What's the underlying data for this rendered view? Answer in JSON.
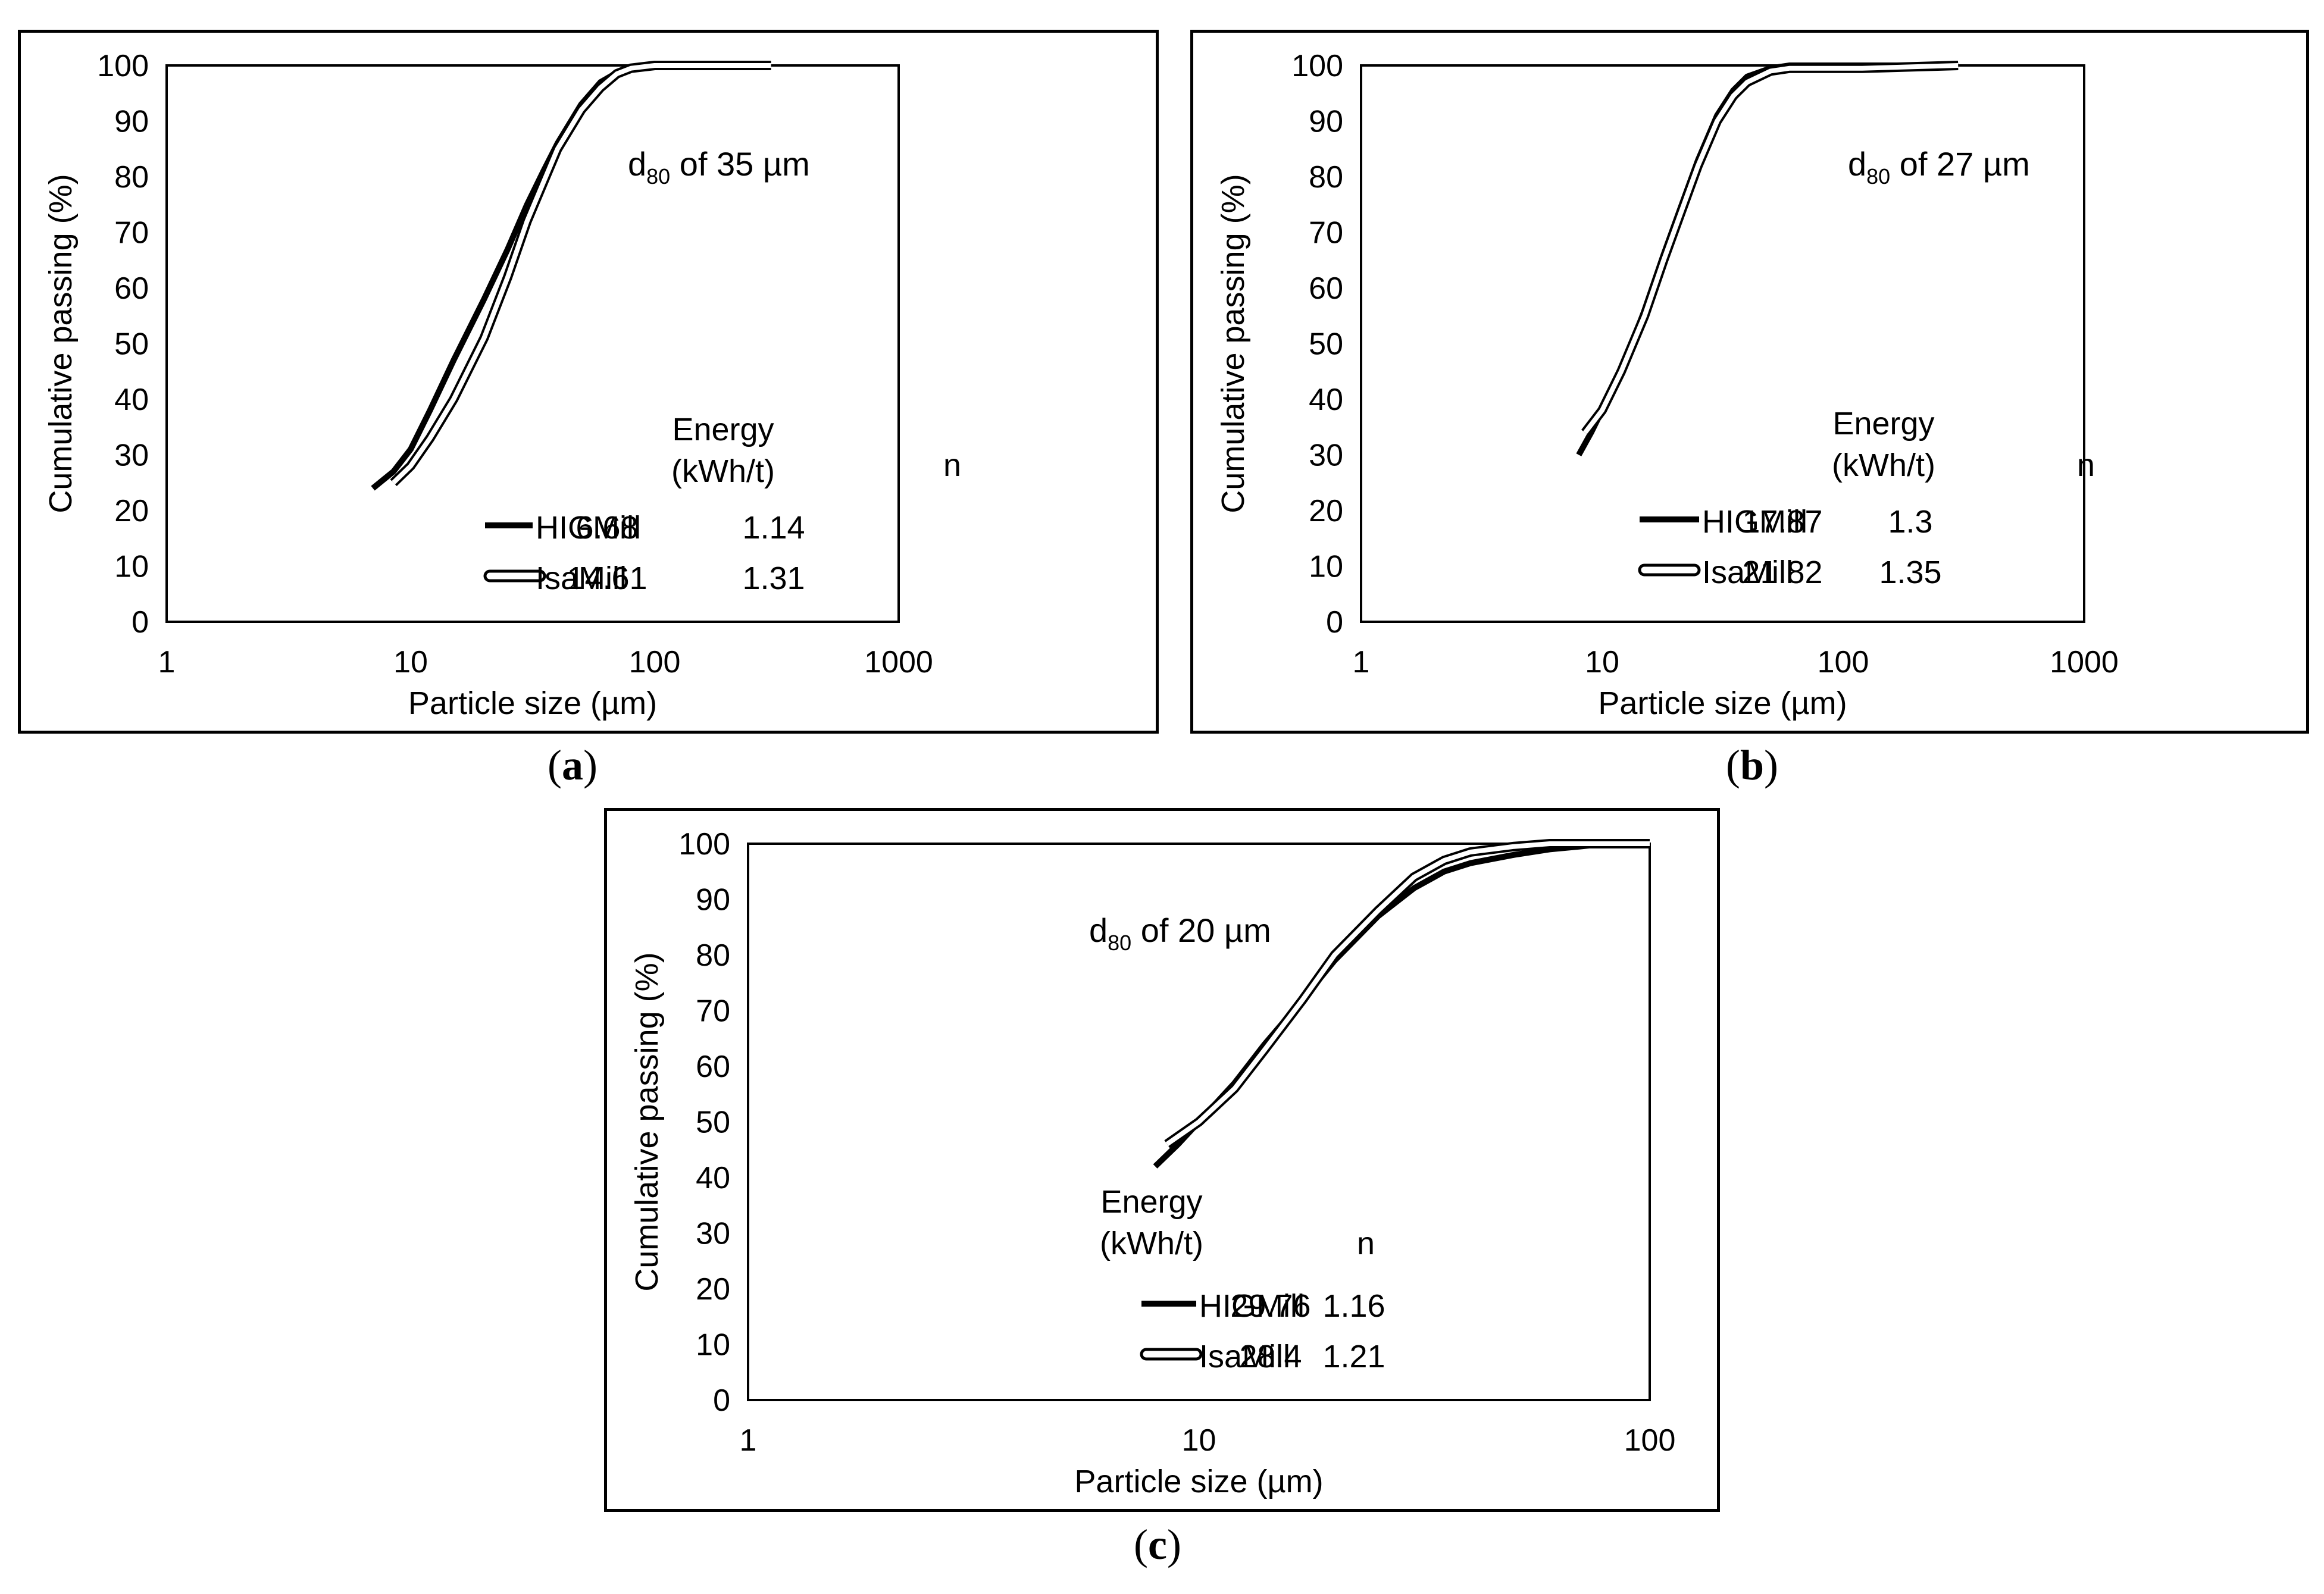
{
  "chart_data": [
    {
      "type": "line",
      "panel_label": "a",
      "xscale": "log",
      "xlabel": "Particle size (µm)",
      "ylabel": "Cumulative passing (%)",
      "xlim": [
        1,
        1000
      ],
      "ylim": [
        0,
        100
      ],
      "x_ticks": [
        "1",
        "10",
        "100",
        "1000"
      ],
      "y_ticks": [
        "0",
        "10",
        "20",
        "30",
        "40",
        "50",
        "60",
        "70",
        "80",
        "90",
        "100"
      ],
      "annotation": {
        "prefix": "d",
        "subscript": "80",
        "suffix": " of 35 µm"
      },
      "table": {
        "header_energy_1": "Energy",
        "header_energy_2": "(kWh/t)",
        "header_n": "n",
        "rows": [
          {
            "name": "HIGMill",
            "energy": "6.68",
            "n": "1.14"
          },
          {
            "name": "IsaMill",
            "energy": "14.61",
            "n": "1.31"
          }
        ]
      },
      "series": [
        {
          "name": "HIGMill",
          "style": "solid",
          "x": [
            7,
            8.5,
            10,
            12,
            15,
            20,
            25,
            30,
            35,
            40,
            50,
            60,
            70,
            80,
            100,
            150,
            300
          ],
          "y": [
            24,
            27,
            31,
            38,
            47,
            58,
            67,
            75,
            81,
            86,
            93,
            97,
            98.7,
            99.5,
            100,
            100,
            100
          ]
        },
        {
          "name": "IsaMill",
          "style": "hollow",
          "x": [
            8.5,
            10,
            12,
            15,
            20,
            25,
            30,
            35,
            40,
            50,
            60,
            70,
            80,
            100,
            150,
            300
          ],
          "y": [
            25,
            28,
            33,
            40,
            51,
            62,
            72,
            79,
            85,
            92,
            96,
            98.5,
            99.5,
            100,
            100,
            100
          ]
        }
      ]
    },
    {
      "type": "line",
      "panel_label": "b",
      "xscale": "log",
      "xlabel": "Particle size (µm)",
      "ylabel": "Cumulative passing (%)",
      "xlim": [
        1,
        1000
      ],
      "ylim": [
        0,
        100
      ],
      "x_ticks": [
        "1",
        "10",
        "100",
        "1000"
      ],
      "y_ticks": [
        "0",
        "10",
        "20",
        "30",
        "40",
        "50",
        "60",
        "70",
        "80",
        "90",
        "100"
      ],
      "annotation": {
        "prefix": "d",
        "subscript": "80",
        "suffix": " of 27 µm"
      },
      "table": {
        "header_energy_1": "Energy",
        "header_energy_2": "(kWh/t)",
        "header_n": "n",
        "rows": [
          {
            "name": "HIGMill",
            "energy": "17.87",
            "n": "1.3"
          },
          {
            "name": "IsaMill",
            "energy": "21.82",
            "n": "1.35"
          }
        ]
      },
      "series": [
        {
          "name": "HIGMill",
          "style": "solid",
          "x": [
            8,
            9,
            10,
            12,
            15,
            18,
            21,
            25,
            30,
            35,
            40,
            50,
            60,
            80,
            120,
            300
          ],
          "y": [
            30,
            34,
            38,
            45,
            56,
            66,
            74,
            83,
            91,
            95.5,
            98,
            99.5,
            100,
            100,
            100,
            100
          ]
        },
        {
          "name": "IsaMill",
          "style": "hollow",
          "x": [
            8.5,
            10,
            12,
            15,
            18,
            21,
            25,
            30,
            35,
            40,
            50,
            60,
            80,
            120,
            300
          ],
          "y": [
            34,
            38,
            45,
            55,
            65,
            73,
            82,
            90,
            94.5,
            97,
            99,
            99.5,
            99.5,
            99.5,
            100
          ]
        }
      ]
    },
    {
      "type": "line",
      "panel_label": "c",
      "xscale": "log",
      "xlabel": "Particle size (µm)",
      "ylabel": "Cumulative passing (%)",
      "xlim": [
        1,
        100
      ],
      "ylim": [
        0,
        100
      ],
      "x_ticks": [
        "1",
        "10",
        "100"
      ],
      "y_ticks": [
        "0",
        "10",
        "20",
        "30",
        "40",
        "50",
        "60",
        "70",
        "80",
        "90",
        "100"
      ],
      "annotation": {
        "prefix": "d",
        "subscript": "80",
        "suffix": " of 20 µm"
      },
      "table": {
        "header_energy_1": "Energy",
        "header_energy_2": "(kWh/t)",
        "header_n": "n",
        "rows": [
          {
            "name": "HIGMill",
            "energy": "29.76",
            "n": "1.16"
          },
          {
            "name": "IsaMill",
            "energy": "28.4",
            "n": "1.21"
          }
        ]
      },
      "series": [
        {
          "name": "HIGMill",
          "style": "solid",
          "x": [
            8,
            9,
            10,
            12,
            14,
            17,
            20,
            25,
            30,
            35,
            40,
            50,
            60,
            70,
            80,
            100
          ],
          "y": [
            42,
            46,
            50,
            57,
            64,
            72,
            79,
            87,
            92,
            95,
            96.5,
            98,
            99,
            99.5,
            100,
            100
          ]
        },
        {
          "name": "IsaMill",
          "style": "hollow",
          "x": [
            8.5,
            10,
            12,
            14,
            17,
            20,
            25,
            30,
            35,
            40,
            50,
            60,
            80,
            100
          ],
          "y": [
            46,
            50,
            56,
            63,
            72,
            80,
            88,
            94,
            97,
            98.5,
            99.5,
            100,
            100,
            100
          ]
        }
      ]
    }
  ]
}
